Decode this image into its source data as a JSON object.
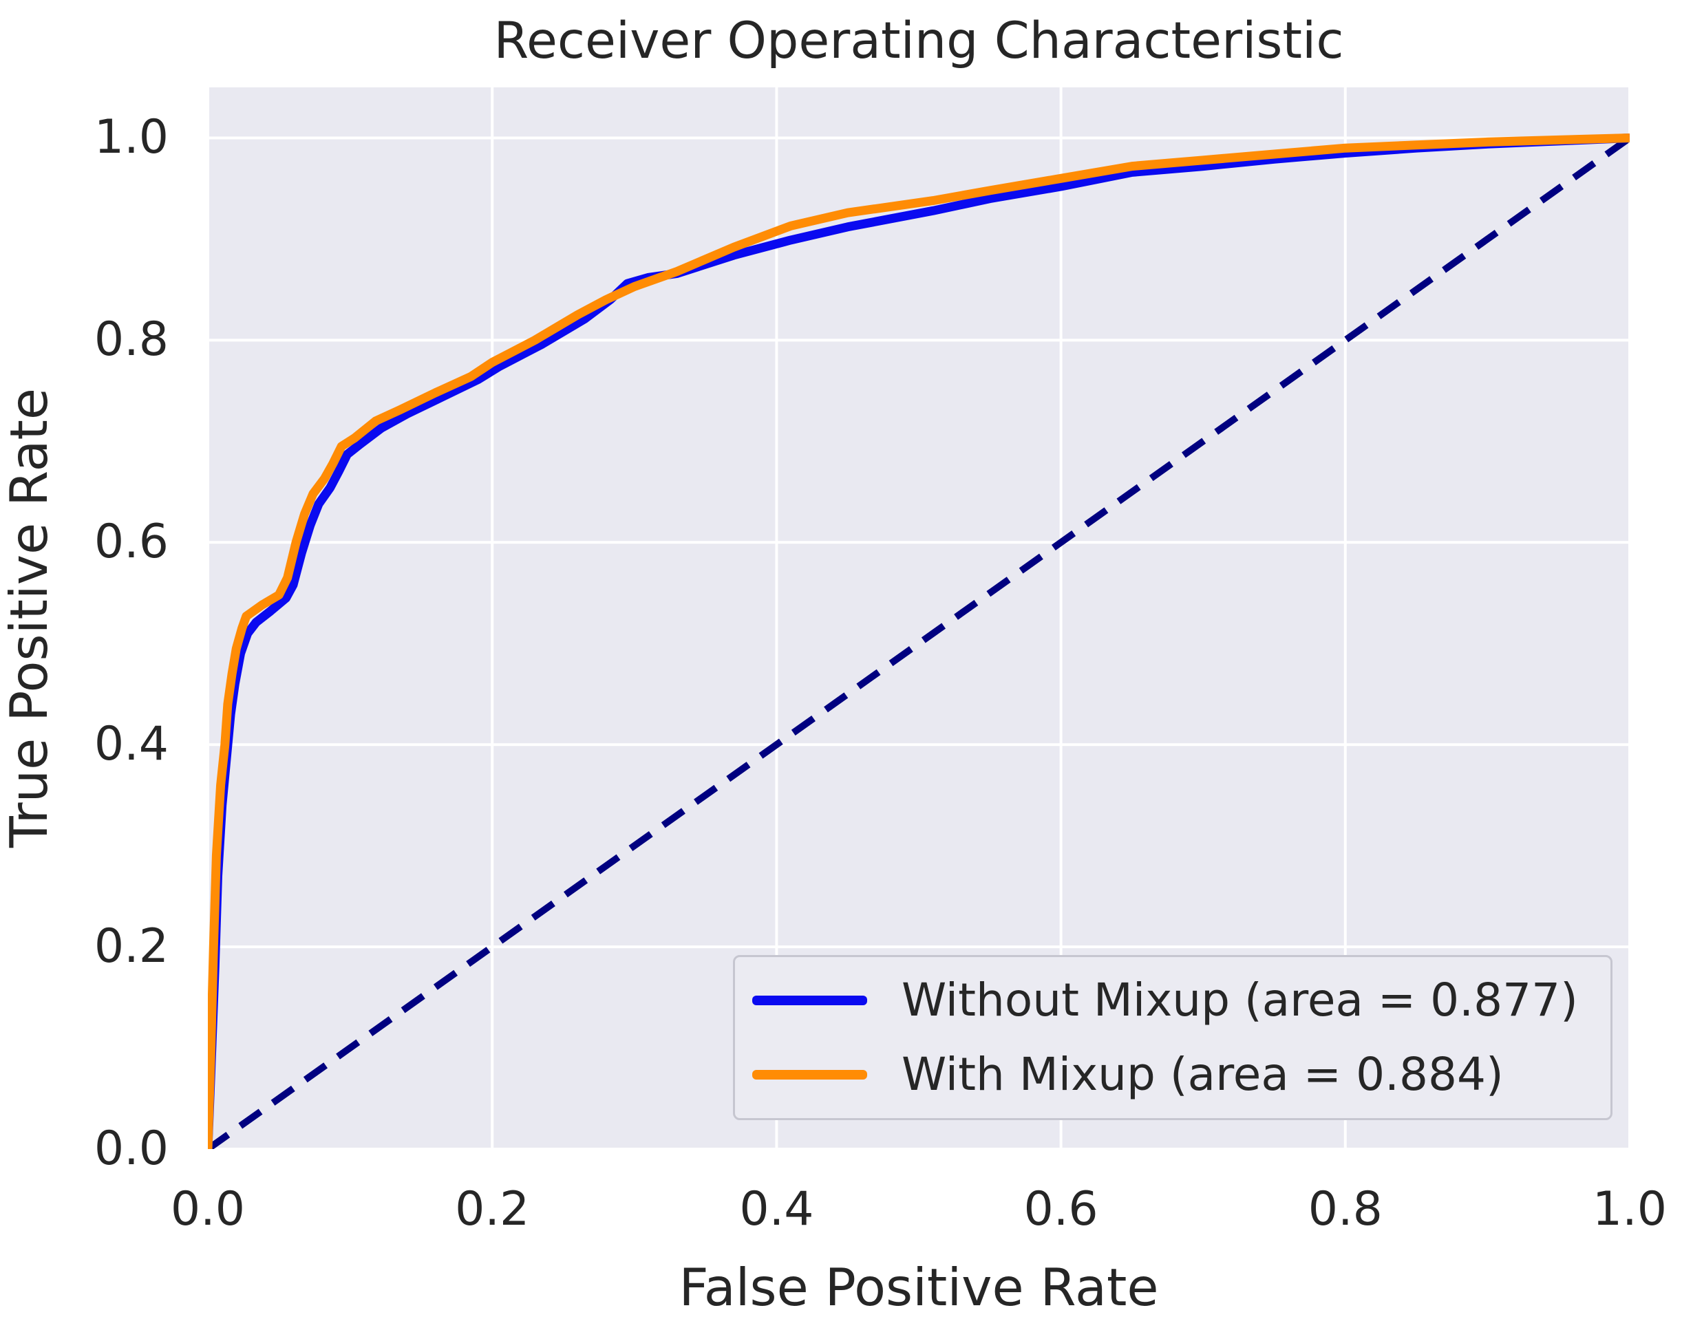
{
  "chart_data": {
    "type": "line",
    "title": "Receiver Operating Characteristic",
    "xlabel": "False Positive Rate",
    "ylabel": "True Positive Rate",
    "xlim": [
      0,
      1.0
    ],
    "ylim": [
      0,
      1.05
    ],
    "grid": true,
    "legend_position": "lower right",
    "x_ticks": [
      {
        "value": 0.0,
        "label": "0.0"
      },
      {
        "value": 0.2,
        "label": "0.2"
      },
      {
        "value": 0.4,
        "label": "0.4"
      },
      {
        "value": 0.6,
        "label": "0.6"
      },
      {
        "value": 0.8,
        "label": "0.8"
      },
      {
        "value": 1.0,
        "label": "1.0"
      }
    ],
    "y_ticks": [
      {
        "value": 0.0,
        "label": "0.0"
      },
      {
        "value": 0.2,
        "label": "0.2"
      },
      {
        "value": 0.4,
        "label": "0.4"
      },
      {
        "value": 0.6,
        "label": "0.6"
      },
      {
        "value": 0.8,
        "label": "0.8"
      },
      {
        "value": 1.0,
        "label": "1.0"
      }
    ],
    "colors": {
      "plot_background": "#e9e9f1",
      "gridline": "#ffffff",
      "text": "#262626",
      "legend_background": "#ebebf2",
      "legend_border": "#c6c6d0"
    },
    "series": [
      {
        "key": "without_mixup",
        "label": "Without Mixup (area = 0.877)",
        "auc": 0.877,
        "color": "#0a0af0",
        "dash": "solid",
        "in_legend": true,
        "points": [
          [
            0,
            0
          ],
          [
            0.002,
            0.07
          ],
          [
            0.005,
            0.18
          ],
          [
            0.007,
            0.27
          ],
          [
            0.01,
            0.34
          ],
          [
            0.013,
            0.385
          ],
          [
            0.016,
            0.43
          ],
          [
            0.019,
            0.46
          ],
          [
            0.023,
            0.49
          ],
          [
            0.028,
            0.51
          ],
          [
            0.034,
            0.521
          ],
          [
            0.044,
            0.532
          ],
          [
            0.055,
            0.545
          ],
          [
            0.06,
            0.558
          ],
          [
            0.066,
            0.59
          ],
          [
            0.072,
            0.617
          ],
          [
            0.078,
            0.638
          ],
          [
            0.086,
            0.654
          ],
          [
            0.092,
            0.67
          ],
          [
            0.098,
            0.687
          ],
          [
            0.107,
            0.697
          ],
          [
            0.122,
            0.713
          ],
          [
            0.14,
            0.727
          ],
          [
            0.165,
            0.744
          ],
          [
            0.19,
            0.761
          ],
          [
            0.205,
            0.774
          ],
          [
            0.235,
            0.796
          ],
          [
            0.265,
            0.821
          ],
          [
            0.283,
            0.84
          ],
          [
            0.295,
            0.856
          ],
          [
            0.31,
            0.862
          ],
          [
            0.33,
            0.866
          ],
          [
            0.37,
            0.884
          ],
          [
            0.41,
            0.899
          ],
          [
            0.45,
            0.912
          ],
          [
            0.51,
            0.928
          ],
          [
            0.55,
            0.94
          ],
          [
            0.6,
            0.952
          ],
          [
            0.65,
            0.966
          ],
          [
            0.7,
            0.972
          ],
          [
            0.75,
            0.979
          ],
          [
            0.8,
            0.985
          ],
          [
            0.85,
            0.99
          ],
          [
            0.9,
            0.994
          ],
          [
            0.95,
            0.997
          ],
          [
            1,
            1
          ]
        ]
      },
      {
        "key": "with_mixup",
        "label": "With Mixup (area = 0.884)",
        "auc": 0.884,
        "color": "#ff8c05",
        "dash": "solid",
        "in_legend": true,
        "points": [
          [
            0,
            0
          ],
          [
            0.002,
            0.09
          ],
          [
            0.004,
            0.2
          ],
          [
            0.006,
            0.29
          ],
          [
            0.009,
            0.36
          ],
          [
            0.012,
            0.4
          ],
          [
            0.014,
            0.44
          ],
          [
            0.017,
            0.47
          ],
          [
            0.02,
            0.495
          ],
          [
            0.024,
            0.515
          ],
          [
            0.027,
            0.527
          ],
          [
            0.038,
            0.538
          ],
          [
            0.05,
            0.548
          ],
          [
            0.056,
            0.565
          ],
          [
            0.062,
            0.6
          ],
          [
            0.068,
            0.628
          ],
          [
            0.074,
            0.648
          ],
          [
            0.082,
            0.663
          ],
          [
            0.088,
            0.678
          ],
          [
            0.094,
            0.695
          ],
          [
            0.103,
            0.703
          ],
          [
            0.118,
            0.72
          ],
          [
            0.135,
            0.731
          ],
          [
            0.16,
            0.748
          ],
          [
            0.185,
            0.764
          ],
          [
            0.2,
            0.778
          ],
          [
            0.23,
            0.8
          ],
          [
            0.26,
            0.825
          ],
          [
            0.28,
            0.84
          ],
          [
            0.3,
            0.853
          ],
          [
            0.33,
            0.868
          ],
          [
            0.37,
            0.892
          ],
          [
            0.41,
            0.913
          ],
          [
            0.45,
            0.926
          ],
          [
            0.51,
            0.938
          ],
          [
            0.55,
            0.948
          ],
          [
            0.6,
            0.96
          ],
          [
            0.65,
            0.972
          ],
          [
            0.7,
            0.978
          ],
          [
            0.75,
            0.984
          ],
          [
            0.8,
            0.99
          ],
          [
            0.85,
            0.993
          ],
          [
            0.9,
            0.996
          ],
          [
            0.95,
            0.998
          ],
          [
            1,
            1
          ]
        ]
      },
      {
        "key": "chance_diagonal",
        "label": "",
        "color": "#000080",
        "dash": "dashed",
        "in_legend": false,
        "points": [
          [
            0,
            0
          ],
          [
            1,
            1
          ]
        ]
      }
    ]
  }
}
